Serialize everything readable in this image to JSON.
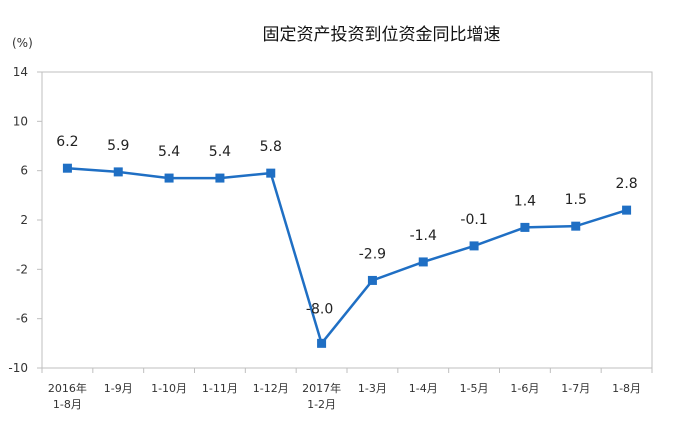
{
  "chart_data": {
    "type": "line",
    "title": "固定资产投资到位资金同比增速",
    "unit": "(%)",
    "categories": [
      [
        "2016年",
        "1-8月"
      ],
      [
        "1-9月"
      ],
      [
        "1-10月"
      ],
      [
        "1-11月"
      ],
      [
        "1-12月"
      ],
      [
        "2017年",
        "1-2月"
      ],
      [
        "1-3月"
      ],
      [
        "1-4月"
      ],
      [
        "1-5月"
      ],
      [
        "1-6月"
      ],
      [
        "1-7月"
      ],
      [
        "1-8月"
      ]
    ],
    "values": [
      6.2,
      5.9,
      5.4,
      5.4,
      5.8,
      -8.0,
      -2.9,
      -1.4,
      -0.1,
      1.4,
      1.5,
      2.8
    ],
    "data_labels": [
      "6.2",
      "5.9",
      "5.4",
      "5.4",
      "5.8",
      "-8.0",
      "-2.9",
      "-1.4",
      "-0.1",
      "1.4",
      "1.5",
      "2.8"
    ],
    "ylim": [
      -10,
      14
    ],
    "yticks": [
      14,
      10,
      6,
      2,
      -2,
      -6,
      -10
    ],
    "ytick_labels": [
      "14",
      "10",
      "6",
      "2",
      "-2",
      "-6",
      "-10"
    ],
    "grid": false,
    "legend": "none",
    "series_color": "#1f6fc4"
  }
}
